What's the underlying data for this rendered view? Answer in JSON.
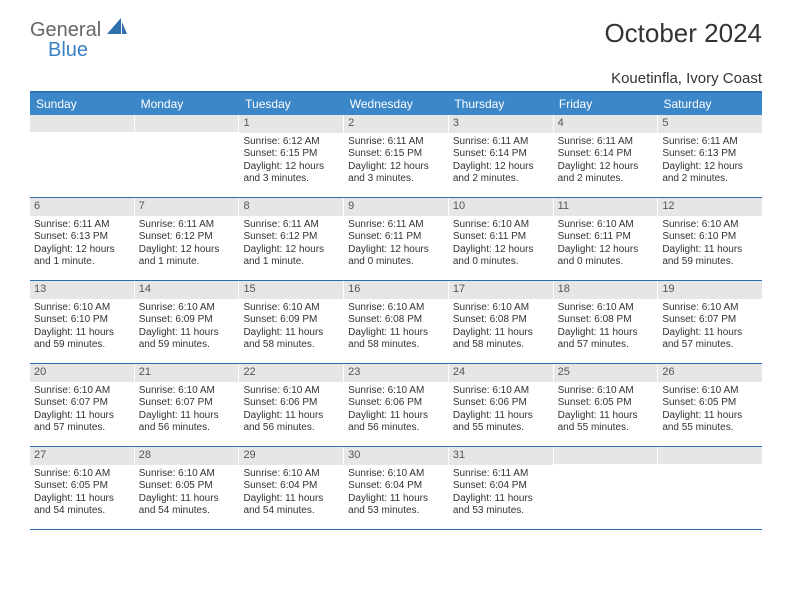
{
  "logo": {
    "line1": "General",
    "line2": "Blue"
  },
  "title": "October 2024",
  "location": "Kouetinfla, Ivory Coast",
  "colors": {
    "header_bg": "#3b87c8",
    "border": "#2f6fad",
    "daynum_bg": "#e6e6e6",
    "text": "#333333"
  },
  "days_of_week": [
    "Sunday",
    "Monday",
    "Tuesday",
    "Wednesday",
    "Thursday",
    "Friday",
    "Saturday"
  ],
  "weeks": [
    [
      null,
      null,
      {
        "n": "1",
        "sr": "Sunrise: 6:12 AM",
        "ss": "Sunset: 6:15 PM",
        "dl": "Daylight: 12 hours and 3 minutes."
      },
      {
        "n": "2",
        "sr": "Sunrise: 6:11 AM",
        "ss": "Sunset: 6:15 PM",
        "dl": "Daylight: 12 hours and 3 minutes."
      },
      {
        "n": "3",
        "sr": "Sunrise: 6:11 AM",
        "ss": "Sunset: 6:14 PM",
        "dl": "Daylight: 12 hours and 2 minutes."
      },
      {
        "n": "4",
        "sr": "Sunrise: 6:11 AM",
        "ss": "Sunset: 6:14 PM",
        "dl": "Daylight: 12 hours and 2 minutes."
      },
      {
        "n": "5",
        "sr": "Sunrise: 6:11 AM",
        "ss": "Sunset: 6:13 PM",
        "dl": "Daylight: 12 hours and 2 minutes."
      }
    ],
    [
      {
        "n": "6",
        "sr": "Sunrise: 6:11 AM",
        "ss": "Sunset: 6:13 PM",
        "dl": "Daylight: 12 hours and 1 minute."
      },
      {
        "n": "7",
        "sr": "Sunrise: 6:11 AM",
        "ss": "Sunset: 6:12 PM",
        "dl": "Daylight: 12 hours and 1 minute."
      },
      {
        "n": "8",
        "sr": "Sunrise: 6:11 AM",
        "ss": "Sunset: 6:12 PM",
        "dl": "Daylight: 12 hours and 1 minute."
      },
      {
        "n": "9",
        "sr": "Sunrise: 6:11 AM",
        "ss": "Sunset: 6:11 PM",
        "dl": "Daylight: 12 hours and 0 minutes."
      },
      {
        "n": "10",
        "sr": "Sunrise: 6:10 AM",
        "ss": "Sunset: 6:11 PM",
        "dl": "Daylight: 12 hours and 0 minutes."
      },
      {
        "n": "11",
        "sr": "Sunrise: 6:10 AM",
        "ss": "Sunset: 6:11 PM",
        "dl": "Daylight: 12 hours and 0 minutes."
      },
      {
        "n": "12",
        "sr": "Sunrise: 6:10 AM",
        "ss": "Sunset: 6:10 PM",
        "dl": "Daylight: 11 hours and 59 minutes."
      }
    ],
    [
      {
        "n": "13",
        "sr": "Sunrise: 6:10 AM",
        "ss": "Sunset: 6:10 PM",
        "dl": "Daylight: 11 hours and 59 minutes."
      },
      {
        "n": "14",
        "sr": "Sunrise: 6:10 AM",
        "ss": "Sunset: 6:09 PM",
        "dl": "Daylight: 11 hours and 59 minutes."
      },
      {
        "n": "15",
        "sr": "Sunrise: 6:10 AM",
        "ss": "Sunset: 6:09 PM",
        "dl": "Daylight: 11 hours and 58 minutes."
      },
      {
        "n": "16",
        "sr": "Sunrise: 6:10 AM",
        "ss": "Sunset: 6:08 PM",
        "dl": "Daylight: 11 hours and 58 minutes."
      },
      {
        "n": "17",
        "sr": "Sunrise: 6:10 AM",
        "ss": "Sunset: 6:08 PM",
        "dl": "Daylight: 11 hours and 58 minutes."
      },
      {
        "n": "18",
        "sr": "Sunrise: 6:10 AM",
        "ss": "Sunset: 6:08 PM",
        "dl": "Daylight: 11 hours and 57 minutes."
      },
      {
        "n": "19",
        "sr": "Sunrise: 6:10 AM",
        "ss": "Sunset: 6:07 PM",
        "dl": "Daylight: 11 hours and 57 minutes."
      }
    ],
    [
      {
        "n": "20",
        "sr": "Sunrise: 6:10 AM",
        "ss": "Sunset: 6:07 PM",
        "dl": "Daylight: 11 hours and 57 minutes."
      },
      {
        "n": "21",
        "sr": "Sunrise: 6:10 AM",
        "ss": "Sunset: 6:07 PM",
        "dl": "Daylight: 11 hours and 56 minutes."
      },
      {
        "n": "22",
        "sr": "Sunrise: 6:10 AM",
        "ss": "Sunset: 6:06 PM",
        "dl": "Daylight: 11 hours and 56 minutes."
      },
      {
        "n": "23",
        "sr": "Sunrise: 6:10 AM",
        "ss": "Sunset: 6:06 PM",
        "dl": "Daylight: 11 hours and 56 minutes."
      },
      {
        "n": "24",
        "sr": "Sunrise: 6:10 AM",
        "ss": "Sunset: 6:06 PM",
        "dl": "Daylight: 11 hours and 55 minutes."
      },
      {
        "n": "25",
        "sr": "Sunrise: 6:10 AM",
        "ss": "Sunset: 6:05 PM",
        "dl": "Daylight: 11 hours and 55 minutes."
      },
      {
        "n": "26",
        "sr": "Sunrise: 6:10 AM",
        "ss": "Sunset: 6:05 PM",
        "dl": "Daylight: 11 hours and 55 minutes."
      }
    ],
    [
      {
        "n": "27",
        "sr": "Sunrise: 6:10 AM",
        "ss": "Sunset: 6:05 PM",
        "dl": "Daylight: 11 hours and 54 minutes."
      },
      {
        "n": "28",
        "sr": "Sunrise: 6:10 AM",
        "ss": "Sunset: 6:05 PM",
        "dl": "Daylight: 11 hours and 54 minutes."
      },
      {
        "n": "29",
        "sr": "Sunrise: 6:10 AM",
        "ss": "Sunset: 6:04 PM",
        "dl": "Daylight: 11 hours and 54 minutes."
      },
      {
        "n": "30",
        "sr": "Sunrise: 6:10 AM",
        "ss": "Sunset: 6:04 PM",
        "dl": "Daylight: 11 hours and 53 minutes."
      },
      {
        "n": "31",
        "sr": "Sunrise: 6:11 AM",
        "ss": "Sunset: 6:04 PM",
        "dl": "Daylight: 11 hours and 53 minutes."
      },
      null,
      null
    ]
  ]
}
